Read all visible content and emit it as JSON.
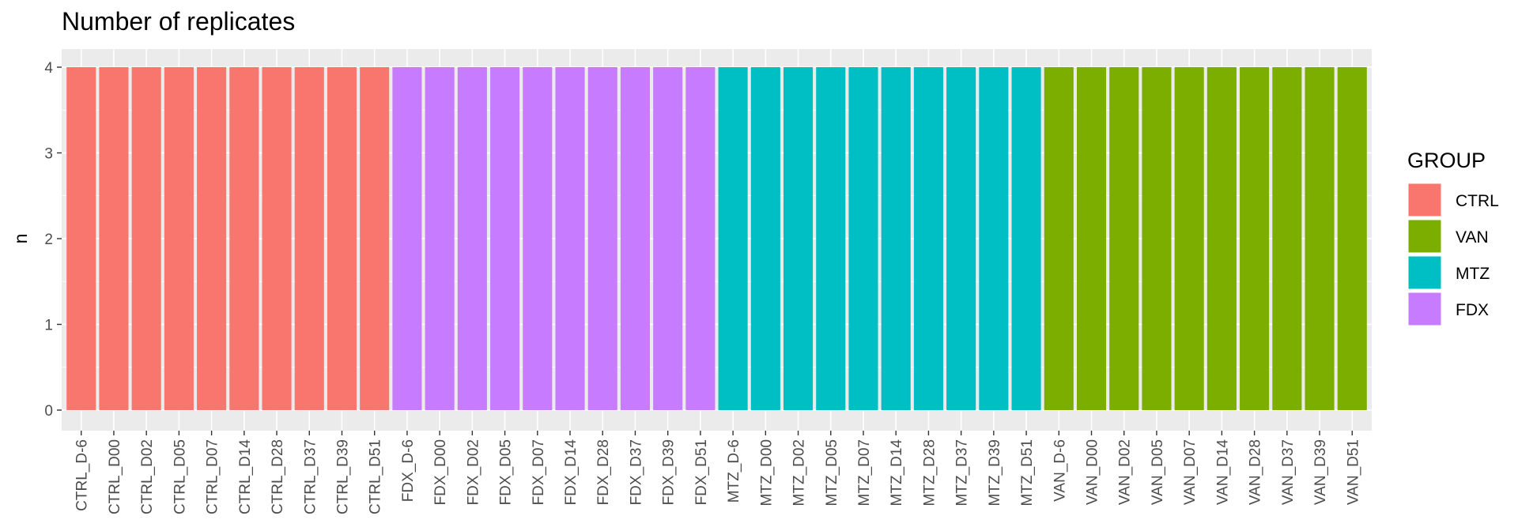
{
  "chart_data": {
    "type": "bar",
    "title": "Number of replicates",
    "xlabel": "",
    "ylabel": "n",
    "ylim": [
      0,
      4.2
    ],
    "yticks": [
      0,
      1,
      2,
      3,
      4
    ],
    "grid": true,
    "legend_position": "right",
    "categories": [
      "CTRL_D-6",
      "CTRL_D00",
      "CTRL_D02",
      "CTRL_D05",
      "CTRL_D07",
      "CTRL_D14",
      "CTRL_D28",
      "CTRL_D37",
      "CTRL_D39",
      "CTRL_D51",
      "FDX_D-6",
      "FDX_D00",
      "FDX_D02",
      "FDX_D05",
      "FDX_D07",
      "FDX_D14",
      "FDX_D28",
      "FDX_D37",
      "FDX_D39",
      "FDX_D51",
      "MTZ_D-6",
      "MTZ_D00",
      "MTZ_D02",
      "MTZ_D05",
      "MTZ_D07",
      "MTZ_D14",
      "MTZ_D28",
      "MTZ_D37",
      "MTZ_D39",
      "MTZ_D51",
      "VAN_D-6",
      "VAN_D00",
      "VAN_D02",
      "VAN_D05",
      "VAN_D07",
      "VAN_D14",
      "VAN_D28",
      "VAN_D37",
      "VAN_D39",
      "VAN_D51"
    ],
    "values": [
      4,
      4,
      4,
      4,
      4,
      4,
      4,
      4,
      4,
      4,
      4,
      4,
      4,
      4,
      4,
      4,
      4,
      4,
      4,
      4,
      4,
      4,
      4,
      4,
      4,
      4,
      4,
      4,
      4,
      4,
      4,
      4,
      4,
      4,
      4,
      4,
      4,
      4,
      4,
      4
    ],
    "groups": [
      "CTRL",
      "CTRL",
      "CTRL",
      "CTRL",
      "CTRL",
      "CTRL",
      "CTRL",
      "CTRL",
      "CTRL",
      "CTRL",
      "FDX",
      "FDX",
      "FDX",
      "FDX",
      "FDX",
      "FDX",
      "FDX",
      "FDX",
      "FDX",
      "FDX",
      "MTZ",
      "MTZ",
      "MTZ",
      "MTZ",
      "MTZ",
      "MTZ",
      "MTZ",
      "MTZ",
      "MTZ",
      "MTZ",
      "VAN",
      "VAN",
      "VAN",
      "VAN",
      "VAN",
      "VAN",
      "VAN",
      "VAN",
      "VAN",
      "VAN"
    ],
    "legend": {
      "title": "GROUP",
      "entries": [
        {
          "name": "CTRL",
          "color": "#F8766D"
        },
        {
          "name": "VAN",
          "color": "#7CAE00"
        },
        {
          "name": "MTZ",
          "color": "#00BFC4"
        },
        {
          "name": "FDX",
          "color": "#C77CFF"
        }
      ]
    },
    "panel_color": "#EBEBEB",
    "grid_color": "#FFFFFF"
  }
}
